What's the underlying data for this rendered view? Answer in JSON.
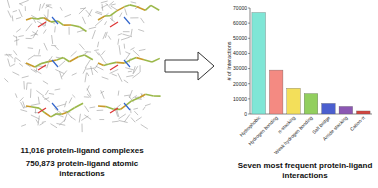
{
  "chart_data": {
    "type": "bar",
    "title": "Seven most frequent protein-ligand interactions",
    "y_label": "# of Interactions",
    "annotations": [
      "11,016 protein-ligand complexes",
      "750,873 protein-ligand atomic interactions"
    ],
    "categories": [
      "Hydrophobic",
      "Hydrogen bonding",
      "π-stacking",
      "Weak hydrogen bonding",
      "Salt bridge",
      "Amide stacking",
      "Cation-π"
    ],
    "values": [
      67000,
      29000,
      17000,
      13500,
      7000,
      5000,
      2000
    ],
    "colors": [
      "#7fe6d6",
      "#f48a82",
      "#f3df5a",
      "#92cf5e",
      "#4b5fcf",
      "#8b57b3",
      "#d2453f"
    ],
    "ylim": [
      0,
      70000
    ],
    "yticks": [
      0,
      10000,
      20000,
      30000,
      40000,
      50000,
      60000,
      70000
    ],
    "grid": false
  }
}
